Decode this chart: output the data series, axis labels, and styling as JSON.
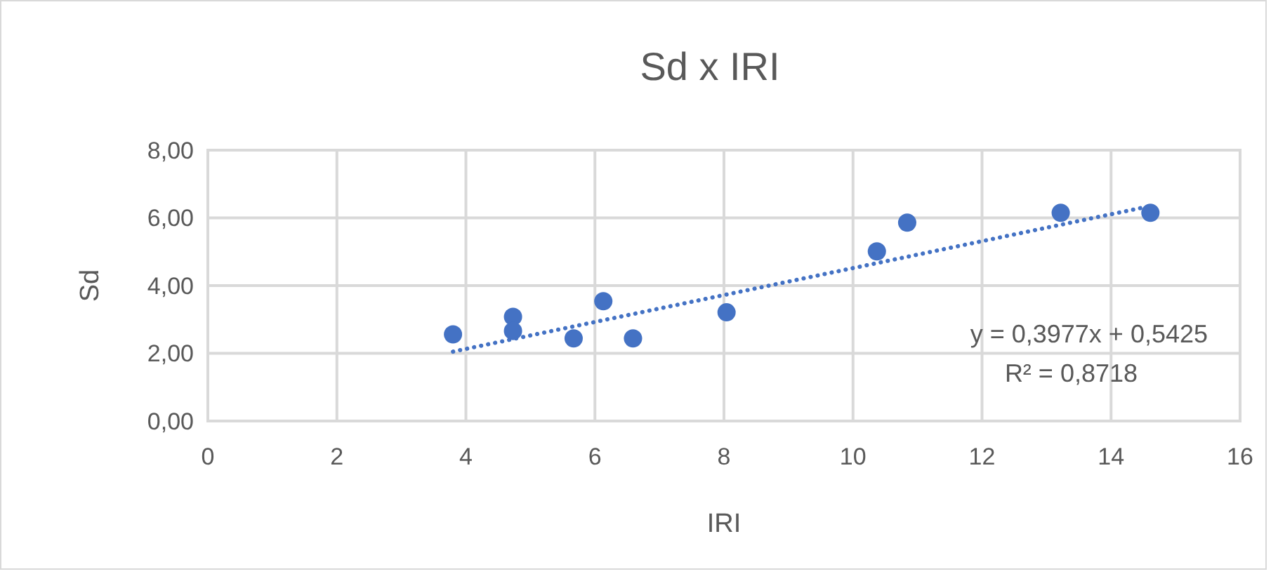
{
  "chart_data": {
    "type": "scatter",
    "title": "Sd x IRI",
    "xlabel": "IRI",
    "ylabel": "Sd",
    "x": [
      3.8,
      4.73,
      4.73,
      5.67,
      6.13,
      6.59,
      8.04,
      10.37,
      10.84,
      13.22,
      14.61
    ],
    "series": [
      {
        "color": "#4472c4",
        "marker": "circle",
        "values": [
          2.56,
          3.08,
          2.66,
          2.44,
          3.54,
          2.44,
          3.21,
          5.01,
          5.86,
          6.15,
          6.15
        ]
      },
      {
        "type": "line",
        "color": "#4472c4",
        "marker": "none",
        "line_style": "dotted",
        "x": [
          3.8,
          14.61
        ],
        "values": [
          2.05,
          6.35
        ]
      }
    ],
    "xlim": [
      0,
      16
    ],
    "xticks": [
      0,
      2,
      4,
      6,
      8,
      10,
      12,
      14,
      16
    ],
    "ylim": [
      0,
      8
    ],
    "yticks": [
      {
        "value": 0,
        "label": "0,00"
      },
      {
        "value": 2,
        "label": "2,00"
      },
      {
        "value": 4,
        "label": "4,00"
      },
      {
        "value": 6,
        "label": "6,00"
      },
      {
        "value": 8,
        "label": "8,00"
      }
    ],
    "grid": true,
    "annotations": [
      "y = 0,3977x + 0,5425",
      "R² = 0,8718"
    ]
  }
}
